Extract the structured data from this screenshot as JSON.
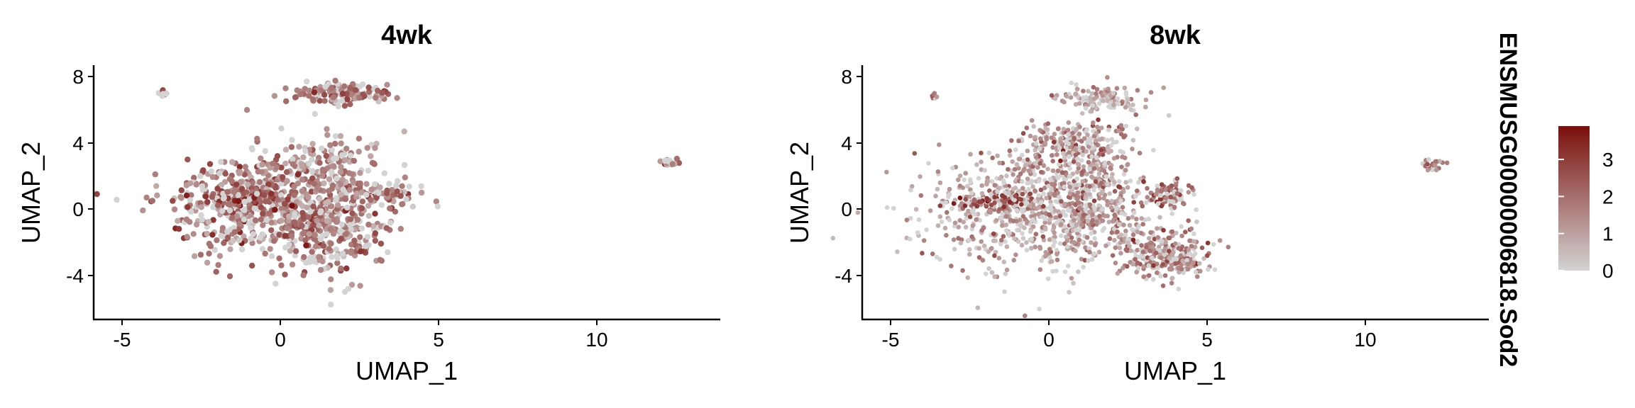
{
  "figure": {
    "legend_title": "ENSMUSG00000006818.Sod2",
    "legend_ticks": [
      "0",
      "1",
      "2",
      "3"
    ],
    "legend_tick_values": [
      0,
      1,
      2,
      3
    ],
    "color_low": "#d3d3d3",
    "color_high": "#7a0f0b",
    "color_range": [
      0,
      3.9
    ]
  },
  "chart_data": [
    {
      "type": "scatter",
      "title": "4wk",
      "xlabel": "UMAP_1",
      "ylabel": "UMAP_2",
      "xlim": [
        -6,
        13.9
      ],
      "ylim": [
        -6.6,
        8.6
      ],
      "xticks": [
        -5,
        0,
        5,
        10
      ],
      "yticks": [
        -4,
        0,
        4,
        8
      ],
      "xtick_labels": [
        "-5",
        "0",
        "5",
        "10"
      ],
      "ytick_labels": [
        "-4",
        "0",
        "4",
        "8"
      ],
      "grid": false,
      "color_by": "ENSMUSG00000006818.Sod2 expression",
      "clusters": [
        {
          "cx": -0.8,
          "cy": 0.3,
          "sx": 1.6,
          "sy": 1.7,
          "n": 560,
          "mean_expr": 1.6
        },
        {
          "cx": 1.6,
          "cy": -1.3,
          "sx": 1.0,
          "sy": 1.5,
          "n": 260,
          "mean_expr": 1.9
        },
        {
          "cx": 1.3,
          "cy": 2.5,
          "sx": 1.1,
          "sy": 1.1,
          "n": 160,
          "mean_expr": 1.4
        },
        {
          "cx": 1.8,
          "cy": 6.9,
          "sx": 0.9,
          "sy": 0.35,
          "n": 150,
          "mean_expr": 1.9
        },
        {
          "cx": -1.3,
          "cy": 0.6,
          "sx": 0.9,
          "sy": 0.35,
          "n": 70,
          "mean_expr": 2.8
        },
        {
          "cx": 3.3,
          "cy": 0.9,
          "sx": 0.7,
          "sy": 0.45,
          "n": 80,
          "mean_expr": 1.6
        },
        {
          "cx": -3.8,
          "cy": 6.9,
          "sx": 0.07,
          "sy": 0.15,
          "n": 10,
          "mean_expr": 2.0
        },
        {
          "cx": 12.3,
          "cy": 2.8,
          "sx": 0.18,
          "sy": 0.15,
          "n": 20,
          "mean_expr": 1.9
        }
      ]
    },
    {
      "type": "scatter",
      "title": "8wk",
      "xlabel": "UMAP_1",
      "ylabel": "UMAP_2",
      "xlim": [
        -6,
        13.9
      ],
      "ylim": [
        -6.6,
        8.6
      ],
      "xticks": [
        -5,
        0,
        5,
        10
      ],
      "yticks": [
        -4,
        0,
        4,
        8
      ],
      "xtick_labels": [
        "-5",
        "0",
        "5",
        "10"
      ],
      "ytick_labels": [
        "-4",
        "0",
        "4",
        "8"
      ],
      "grid": false,
      "color_by": "ENSMUSG00000006818.Sod2 expression",
      "clusters": [
        {
          "cx": -1.0,
          "cy": 0.0,
          "sx": 1.8,
          "sy": 2.1,
          "n": 650,
          "mean_expr": 1.1
        },
        {
          "cx": 1.4,
          "cy": 0.4,
          "sx": 0.9,
          "sy": 2.0,
          "n": 380,
          "mean_expr": 1.3
        },
        {
          "cx": 3.6,
          "cy": -2.8,
          "sx": 0.8,
          "sy": 0.9,
          "n": 260,
          "mean_expr": 1.5
        },
        {
          "cx": 0.8,
          "cy": 3.9,
          "sx": 0.9,
          "sy": 0.8,
          "n": 220,
          "mean_expr": 1.4
        },
        {
          "cx": 1.6,
          "cy": 6.6,
          "sx": 0.8,
          "sy": 0.45,
          "n": 130,
          "mean_expr": 1.0
        },
        {
          "cx": -1.7,
          "cy": 0.6,
          "sx": 0.9,
          "sy": 0.3,
          "n": 70,
          "mean_expr": 2.9
        },
        {
          "cx": 3.8,
          "cy": 0.9,
          "sx": 0.4,
          "sy": 0.5,
          "n": 80,
          "mean_expr": 2.0
        },
        {
          "cx": -3.7,
          "cy": 6.8,
          "sx": 0.06,
          "sy": 0.2,
          "n": 8,
          "mean_expr": 1.8
        },
        {
          "cx": 12.1,
          "cy": 2.7,
          "sx": 0.18,
          "sy": 0.18,
          "n": 25,
          "mean_expr": 1.5
        }
      ]
    }
  ]
}
